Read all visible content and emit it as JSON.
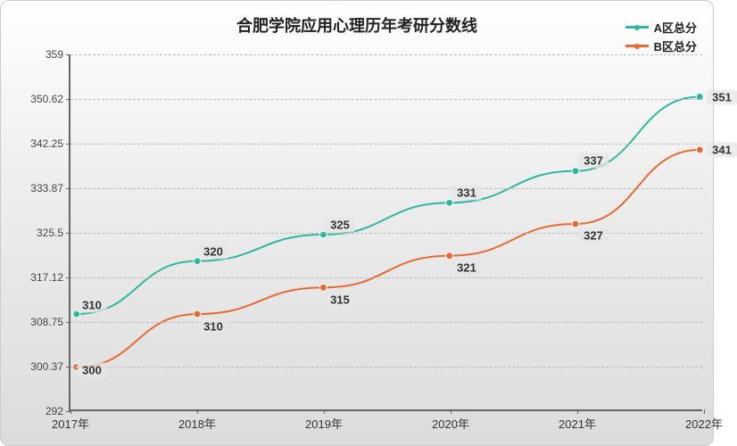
{
  "chart": {
    "title": "合肥学院应用心理历年考研分数线",
    "title_fontsize": 18,
    "background_gradient": [
      "#ffffff",
      "#eeeeee",
      "#dcdcdc"
    ],
    "border_color": "#666666",
    "grid_color": "#bbbbbb",
    "type": "line",
    "xlim": [
      "2017年",
      "2022年"
    ],
    "ylim": [
      292,
      359
    ],
    "yticks": [
      292,
      300.37,
      308.75,
      317.12,
      325.5,
      333.87,
      342.25,
      350.62,
      359
    ],
    "xticks": [
      "2017年",
      "2018年",
      "2019年",
      "2020年",
      "2021年",
      "2022年"
    ],
    "line_width": 2,
    "marker_radius": 4,
    "label_fontsize": 13,
    "tick_fontsize": 12,
    "series": [
      {
        "name": "A区总分",
        "color": "#2fb8a0",
        "values": [
          310,
          320,
          325,
          331,
          337,
          351
        ],
        "label_offsets_y": [
          -12,
          -12,
          -12,
          -12,
          -12,
          0
        ],
        "label_offsets_x": [
          18,
          18,
          18,
          18,
          18,
          22
        ]
      },
      {
        "name": "B区总分",
        "color": "#e86a33",
        "values": [
          300,
          310,
          315,
          321,
          327,
          341
        ],
        "label_offsets_y": [
          2,
          12,
          12,
          12,
          12,
          0
        ],
        "label_offsets_x": [
          18,
          18,
          18,
          18,
          18,
          22
        ]
      }
    ]
  }
}
